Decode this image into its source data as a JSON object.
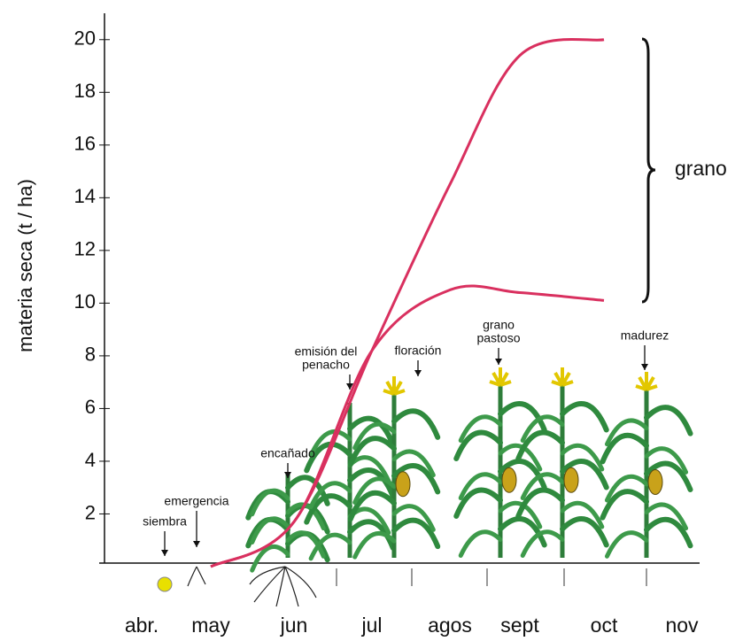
{
  "chart_data": {
    "type": "line",
    "y_label": "materia seca (t / ha)",
    "categories": [
      "abr.",
      "may",
      "jun",
      "jul",
      "agos",
      "sept",
      "oct",
      "nov"
    ],
    "series": [
      {
        "color": "#d9305f",
        "values": [
          null,
          0,
          1.7,
          8.2,
          14.5,
          19.4,
          20,
          null
        ]
      },
      {
        "color": "#d9305f",
        "values": [
          null,
          0,
          1.7,
          8.2,
          10.5,
          10.4,
          10.1,
          null
        ]
      }
    ],
    "ylim": [
      0,
      21
    ],
    "yticks": [
      2,
      4,
      6,
      8,
      10,
      12,
      14,
      16,
      18,
      20
    ],
    "annotations": [
      {
        "lines": [
          "siembra"
        ]
      },
      {
        "lines": [
          "emergencia"
        ]
      },
      {
        "lines": [
          "encañado"
        ]
      },
      {
        "lines": [
          "emisión del",
          "penacho"
        ]
      },
      {
        "lines": [
          "floración"
        ]
      },
      {
        "lines": [
          "grano",
          "pastoso"
        ]
      },
      {
        "lines": [
          "madurez"
        ]
      }
    ],
    "brace_label": "grano"
  }
}
